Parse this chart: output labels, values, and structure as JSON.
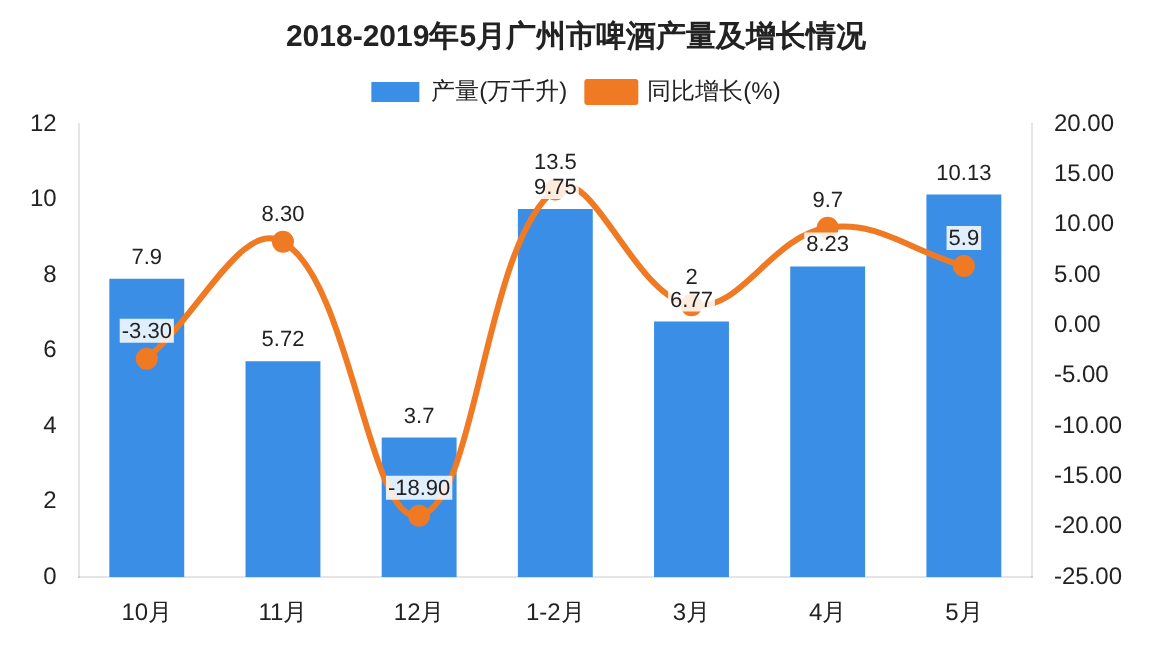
{
  "chart_data": {
    "type": "bar",
    "title": "2018-2019年5月广州市啤酒产量及增长情况",
    "categories": [
      "10月",
      "11月",
      "12月",
      "1-2月",
      "3月",
      "4月",
      "5月"
    ],
    "series": [
      {
        "name": "产量(万千升)",
        "color": "#3a8ee6",
        "values": [
          7.9,
          5.72,
          3.7,
          9.75,
          6.77,
          8.23,
          10.13
        ]
      },
      {
        "name": "同比增长(%)",
        "type": "line",
        "axis": "y2",
        "color": "#f07a24",
        "values": [
          -3.3,
          8.3,
          -18.9,
          13.5,
          2,
          9.7,
          5.9
        ],
        "value_labels": [
          "-3.30",
          "8.30",
          "-18.90",
          "13.5",
          "2",
          "9.7",
          "5.9"
        ]
      }
    ],
    "ylim": [
      0,
      12
    ],
    "yticks": [
      0,
      2,
      4,
      6,
      8,
      10,
      12
    ],
    "y2lim": [
      -25,
      20
    ],
    "y2ticks": [
      {
        "value": -25,
        "label": "-25.00"
      },
      {
        "value": -20,
        "label": "-20.00"
      },
      {
        "value": -15,
        "label": "-15.00"
      },
      {
        "value": -10,
        "label": "-10.00"
      },
      {
        "value": -5,
        "label": "-5.00"
      },
      {
        "value": 0,
        "label": "0.00"
      },
      {
        "value": 5,
        "label": "5.00"
      },
      {
        "value": 10,
        "label": "10.00"
      },
      {
        "value": 15,
        "label": "15.00"
      },
      {
        "value": 20,
        "label": "20.00"
      }
    ],
    "data_labels": true,
    "legend": "top",
    "grid": false,
    "marker": "circle",
    "line_style": "solid"
  }
}
